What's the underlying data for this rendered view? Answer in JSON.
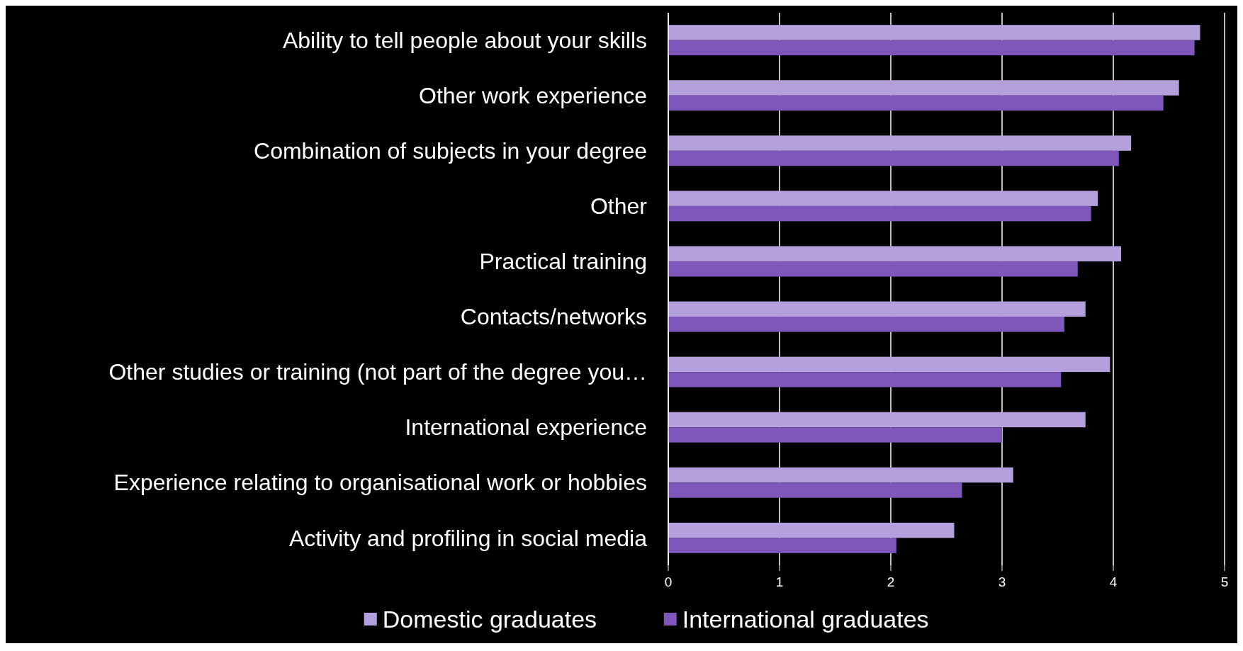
{
  "chart_data": {
    "type": "bar",
    "orientation": "horizontal",
    "categories": [
      "Ability to tell people about your skills",
      "Other work experience",
      "Combination of subjects in your degree",
      "Other",
      "Practical training",
      "Contacts/networks",
      "Other studies or training (not part of the degree you…",
      "International experience",
      "Experience relating to organisational work or hobbies",
      "Activity and profiling in social media"
    ],
    "series": [
      {
        "name": "Domestic graduates",
        "color": "#b4a0dc",
        "values": [
          4.78,
          4.59,
          4.16,
          3.86,
          4.07,
          3.75,
          3.97,
          3.75,
          3.1,
          2.57
        ]
      },
      {
        "name": "International graduates",
        "color": "#7f56b9",
        "values": [
          4.73,
          4.45,
          4.05,
          3.8,
          3.68,
          3.56,
          3.53,
          3.0,
          2.64,
          2.05
        ]
      }
    ],
    "xlim": [
      0,
      5
    ],
    "xticks": [
      0,
      1,
      2,
      3,
      4,
      5
    ],
    "grid": "x",
    "legend": "bottom"
  }
}
